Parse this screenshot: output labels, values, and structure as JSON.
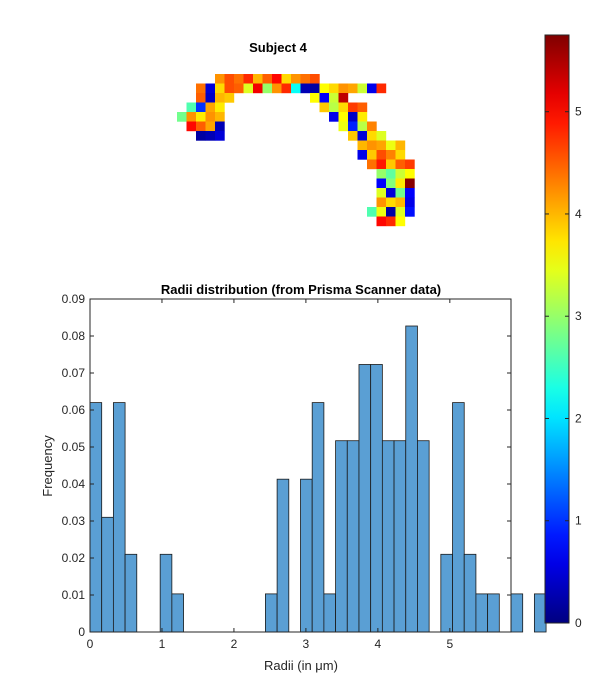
{
  "subject_panel": {
    "title": "Subject 4",
    "colormap": "jet",
    "pixel_values": [
      [
        4.2,
        4.6,
        4.4,
        4.8,
        4.0,
        4.5,
        5.0,
        3.8,
        4.2,
        4.4,
        4.6
      ],
      [
        4.4,
        0.5,
        3.8,
        4.6,
        4.5,
        3.4,
        5.1,
        3.0,
        4.2,
        4.8,
        2.2,
        0.3,
        0.2,
        3.6,
        3.8,
        4.2,
        4.1,
        3.3,
        0.6,
        4.8
      ],
      [
        4.5,
        0.4,
        4.0,
        3.9,
        3.6,
        0.7,
        3.3,
        5.4
      ],
      [
        2.6,
        1.0,
        4.1,
        3.7,
        3.9,
        3.2,
        3.8,
        4.7,
        4.5
      ],
      [
        2.8,
        4.2,
        3.7,
        4.2,
        4.0,
        0.6,
        3.6,
        0.4,
        3.7
      ],
      [
        5.0,
        4.5,
        4.1,
        0.3,
        3.5,
        0.9,
        3.2,
        4.3
      ],
      [
        0.2,
        0.3,
        0.5,
        3.9,
        0.5,
        3.8,
        3.4
      ],
      [
        4.0,
        4.2,
        4.1,
        3.5,
        4.0
      ],
      [
        0.6,
        3.9,
        4.6,
        4.3,
        3.8
      ],
      [
        4.4,
        4.9,
        3.9,
        4.5,
        4.7
      ],
      [
        3.0,
        2.7,
        3.3,
        3.6
      ],
      [
        0.7,
        2.9,
        3.7,
        5.7
      ],
      [
        3.4,
        0.5,
        2.8,
        0.7
      ],
      [
        4.2,
        3.8,
        4.0,
        0.6
      ],
      [
        2.6,
        3.5,
        0.2,
        3.4,
        0.8
      ],
      [
        5.0,
        4.8,
        3.6
      ]
    ]
  },
  "colorbar": {
    "min": 0,
    "max": 5.75,
    "ticks": [
      "0",
      "1",
      "2",
      "3",
      "4",
      "5"
    ]
  },
  "chart_data": {
    "type": "bar",
    "title": "Radii distribution (from Prisma Scanner data)",
    "xlabel": "Radii (in μm)",
    "ylabel": "Frequency",
    "xlim": [
      0,
      5.85
    ],
    "ylim": [
      0,
      0.09
    ],
    "bin_width": 0.1625,
    "bin_edges_start": 0,
    "values": [
      0.062,
      0.031,
      0.062,
      0.021,
      0,
      0,
      0.021,
      0.0103,
      0,
      0,
      0,
      0,
      0,
      0,
      0,
      0.0103,
      0.0413,
      0,
      0.0413,
      0.062,
      0.0103,
      0.0517,
      0.0517,
      0.0723,
      0.0723,
      0.0517,
      0.0517,
      0.0827,
      0.0517,
      0,
      0.021,
      0.062,
      0.021,
      0.0103,
      0.0103,
      0,
      0.0103,
      0,
      0.0103,
      0,
      0
    ],
    "xticks": [
      "0",
      "1",
      "2",
      "3",
      "4",
      "5"
    ],
    "yticks": [
      "0",
      "0.01",
      "0.02",
      "0.03",
      "0.04",
      "0.05",
      "0.06",
      "0.07",
      "0.08",
      "0.09"
    ],
    "bar_color": "#5a9fd4",
    "edge_color": "#1a1a1a",
    "grid": false,
    "legend": "none"
  }
}
